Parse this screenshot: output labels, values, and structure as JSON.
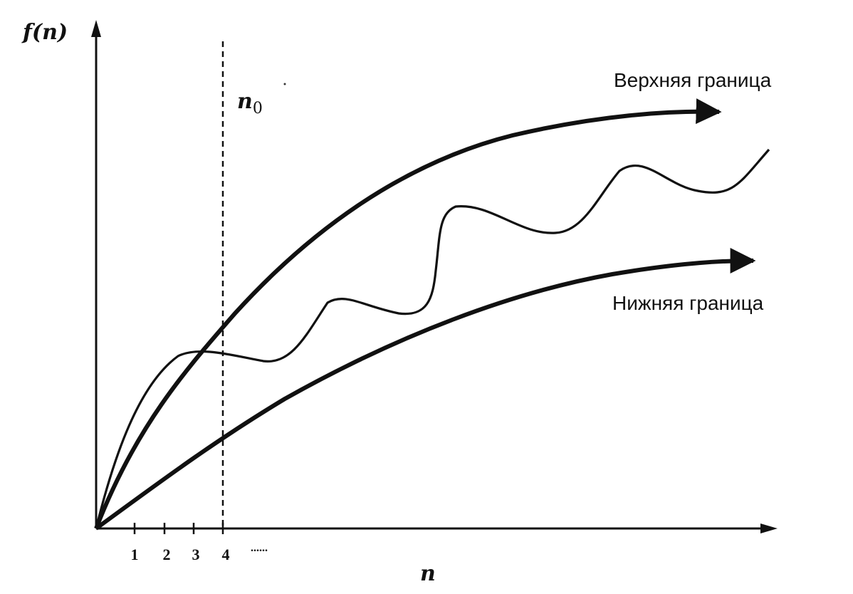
{
  "diagram": {
    "y_axis_label": "f(n)",
    "x_axis_label": "n",
    "threshold_label_base": "n",
    "threshold_label_sub": "0",
    "tick_labels": [
      "1",
      "2",
      "3",
      "4"
    ],
    "ellipsis": "......",
    "upper_bound_label": "Верхняя граница",
    "lower_bound_label": "Нижняя граница",
    "ink_color": "#111111"
  }
}
